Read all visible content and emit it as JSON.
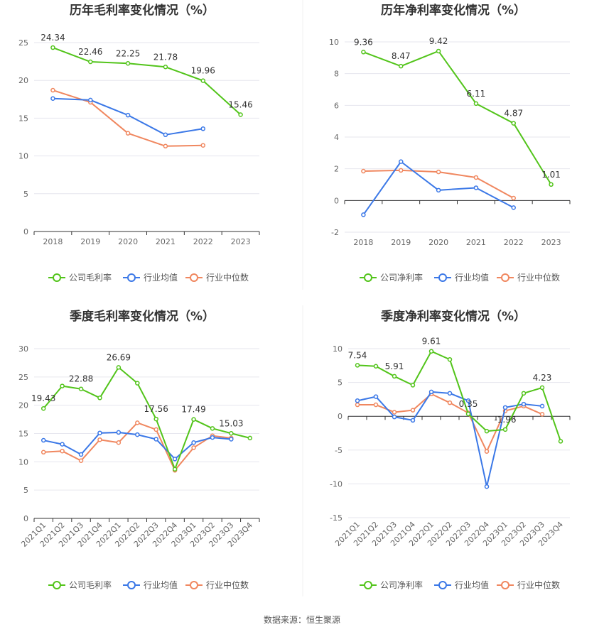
{
  "chart_data": [
    {
      "type": "line",
      "title": "历年毛利率变化情况（%）",
      "categories": [
        "2018",
        "2019",
        "2020",
        "2021",
        "2022",
        "2023"
      ],
      "ylim": [
        0,
        25
      ],
      "yticks": [
        0,
        5,
        10,
        15,
        20,
        25
      ],
      "series": [
        {
          "name": "公司毛利率",
          "color": "#52c41a",
          "values": [
            24.34,
            22.46,
            22.25,
            21.78,
            19.96,
            15.46
          ],
          "show_labels": true
        },
        {
          "name": "行业均值",
          "color": "#3b78e7",
          "values": [
            17.6,
            17.4,
            15.4,
            12.8,
            13.6,
            null
          ],
          "show_labels": false
        },
        {
          "name": "行业中位数",
          "color": "#f0875f",
          "values": [
            18.7,
            17.1,
            13.0,
            11.3,
            11.4,
            null
          ],
          "show_labels": false
        }
      ]
    },
    {
      "type": "line",
      "title": "历年净利率变化情况（%）",
      "categories": [
        "2018",
        "2019",
        "2020",
        "2021",
        "2022",
        "2023"
      ],
      "ylim": [
        -2,
        10
      ],
      "yticks": [
        -2,
        0,
        2,
        4,
        6,
        8,
        10
      ],
      "series": [
        {
          "name": "公司净利率",
          "color": "#52c41a",
          "values": [
            9.36,
            8.47,
            9.42,
            6.11,
            4.87,
            1.01
          ],
          "show_labels": true
        },
        {
          "name": "行业均值",
          "color": "#3b78e7",
          "values": [
            -0.9,
            2.45,
            0.65,
            0.8,
            -0.45,
            null
          ],
          "show_labels": false
        },
        {
          "name": "行业中位数",
          "color": "#f0875f",
          "values": [
            1.85,
            1.9,
            1.8,
            1.45,
            0.15,
            null
          ],
          "show_labels": false
        }
      ]
    },
    {
      "type": "line",
      "title": "季度毛利率变化情况（%）",
      "categories": [
        "2021Q1",
        "2021Q2",
        "2021Q3",
        "2021Q4",
        "2022Q1",
        "2022Q2",
        "2022Q3",
        "2022Q4",
        "2023Q1",
        "2023Q2",
        "2023Q3",
        "2023Q4"
      ],
      "ylim": [
        0,
        30
      ],
      "yticks": [
        0,
        5,
        10,
        15,
        20,
        25,
        30
      ],
      "series": [
        {
          "name": "公司毛利率",
          "color": "#52c41a",
          "values": [
            19.43,
            23.4,
            22.88,
            21.3,
            26.69,
            23.9,
            17.56,
            8.7,
            17.49,
            15.9,
            15.03,
            14.2
          ],
          "label_indices": [
            0,
            2,
            4,
            6,
            8,
            10
          ]
        },
        {
          "name": "行业均值",
          "color": "#3b78e7",
          "values": [
            13.8,
            13.1,
            11.3,
            15.1,
            15.2,
            14.8,
            14.0,
            10.5,
            13.4,
            14.3,
            14.0,
            null
          ],
          "label_indices": []
        },
        {
          "name": "行业中位数",
          "color": "#f0875f",
          "values": [
            11.7,
            11.9,
            10.2,
            13.9,
            13.4,
            16.9,
            15.7,
            8.5,
            12.5,
            14.6,
            14.2,
            null
          ],
          "label_indices": []
        }
      ]
    },
    {
      "type": "line",
      "title": "季度净利率变化情况（%）",
      "categories": [
        "2021Q1",
        "2021Q2",
        "2021Q3",
        "2021Q4",
        "2022Q1",
        "2022Q2",
        "2022Q3",
        "2022Q4",
        "2023Q1",
        "2023Q2",
        "2023Q3",
        "2023Q4"
      ],
      "ylim": [
        -15,
        10
      ],
      "yticks": [
        -15,
        -10,
        -5,
        0,
        5,
        10
      ],
      "series": [
        {
          "name": "公司净利率",
          "color": "#52c41a",
          "values": [
            7.54,
            7.4,
            5.91,
            4.6,
            9.61,
            8.4,
            0.35,
            -2.2,
            -1.96,
            3.4,
            4.23,
            -3.7
          ],
          "label_indices": [
            0,
            2,
            4,
            6,
            8,
            10
          ]
        },
        {
          "name": "行业均值",
          "color": "#3b78e7",
          "values": [
            2.3,
            2.9,
            -0.1,
            -0.6,
            3.6,
            3.4,
            2.3,
            -10.4,
            1.3,
            1.8,
            1.5,
            null
          ],
          "label_indices": []
        },
        {
          "name": "行业中位数",
          "color": "#f0875f",
          "values": [
            1.7,
            1.7,
            0.6,
            0.9,
            3.3,
            2.0,
            0.5,
            -5.2,
            0.8,
            1.5,
            0.3,
            null
          ],
          "label_indices": []
        }
      ]
    }
  ],
  "footer": "数据来源：恒生聚源"
}
